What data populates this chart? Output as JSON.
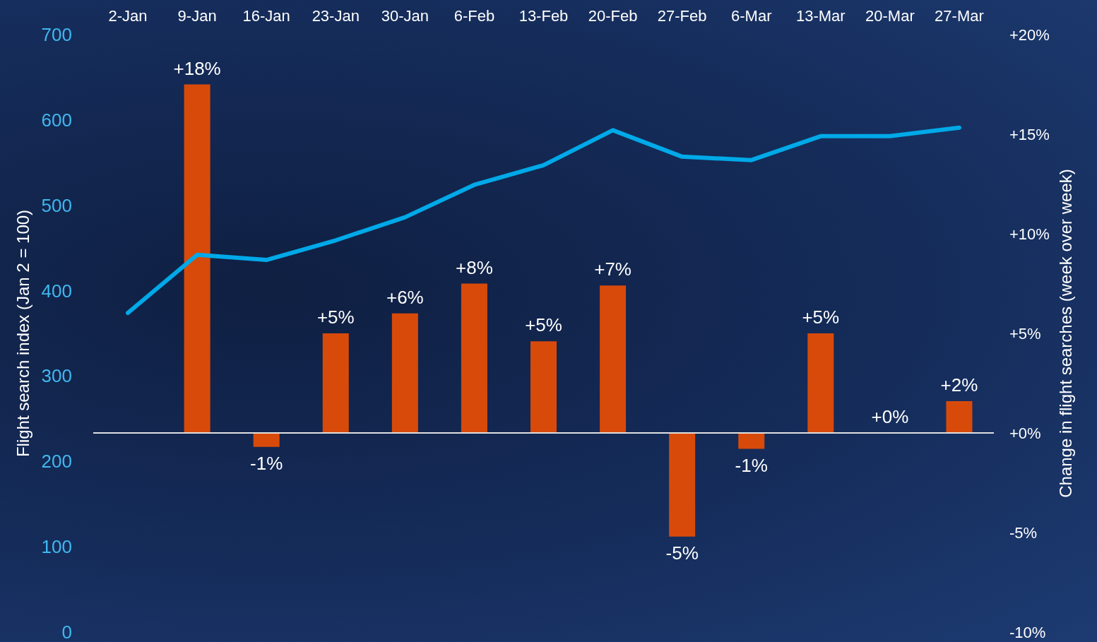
{
  "chart_data": {
    "type": "bar",
    "categories": [
      "2-Jan",
      "9-Jan",
      "16-Jan",
      "23-Jan",
      "30-Jan",
      "6-Feb",
      "13-Feb",
      "20-Feb",
      "27-Feb",
      "6-Mar",
      "13-Mar",
      "20-Mar",
      "27-Mar"
    ],
    "series": [
      {
        "axis": "y2",
        "color": "#d84a0a",
        "values": [
          null,
          17.5,
          -0.7,
          5.0,
          6.0,
          7.5,
          4.6,
          7.4,
          -5.2,
          -0.8,
          5.0,
          0,
          1.6
        ],
        "value_labels": [
          null,
          "+18%",
          "-1%",
          "+5%",
          "+6%",
          "+8%",
          "+5%",
          "+7%",
          "-5%",
          "-1%",
          "+5%",
          "+0%",
          "+2%"
        ]
      },
      {
        "type": "line",
        "axis": "y",
        "color": "#00a9e8",
        "values": [
          374,
          442,
          436,
          459,
          486,
          524,
          547,
          588,
          557,
          553,
          581,
          581,
          591
        ]
      }
    ],
    "ylabel": "Flight search index (Jan 2 = 100)",
    "y2label": "Change in flight searches (week over week)",
    "ylim": [
      0,
      700
    ],
    "yticks": [
      0,
      100,
      200,
      300,
      400,
      500,
      600,
      700
    ],
    "y2lim": [
      -10,
      20
    ],
    "y2ticks": [
      {
        "value": -10,
        "label": "-10%"
      },
      {
        "value": -5,
        "label": "-5%"
      },
      {
        "value": 0,
        "label": "+0%"
      },
      {
        "value": 5,
        "label": "+5%"
      },
      {
        "value": 10,
        "label": "+10%"
      },
      {
        "value": 15,
        "label": "+15%"
      },
      {
        "value": 20,
        "label": "+20%"
      }
    ],
    "ref_lines": [
      {
        "axis": "y2",
        "value": 0,
        "color": "#e0e0e0"
      }
    ],
    "marker": "none",
    "line_style": "solid",
    "grid": false
  }
}
